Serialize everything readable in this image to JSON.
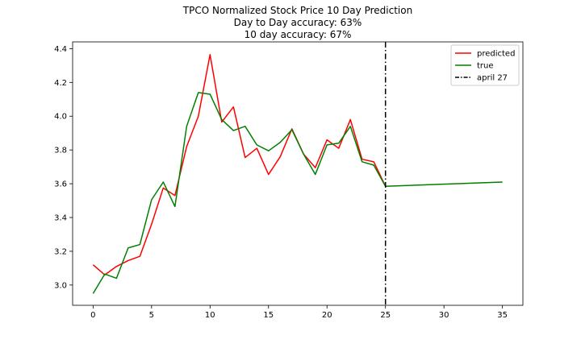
{
  "chart_data": {
    "type": "line",
    "title": [
      "TPCO Normalized Stock Price 10 Day Prediction",
      "Day to Day accuracy: 63%",
      "10 day accuracy: 67%"
    ],
    "xlabel": "",
    "ylabel": "",
    "xlim": [
      -1.75,
      36.75
    ],
    "ylim": [
      2.88,
      4.44
    ],
    "xticks": [
      0,
      5,
      10,
      15,
      20,
      25,
      30,
      35
    ],
    "yticks": [
      3.0,
      3.2,
      3.4,
      3.6,
      3.8,
      4.0,
      4.2,
      4.4
    ],
    "grid": false,
    "legend_position": "top-right",
    "series": [
      {
        "name": "predicted",
        "color": "#ff0000",
        "x": [
          0,
          1,
          2,
          3,
          4,
          5,
          6,
          7,
          8,
          9,
          10,
          11,
          12,
          13,
          14,
          15,
          16,
          17,
          18,
          19,
          20,
          21,
          22,
          23,
          24,
          25
        ],
        "y": [
          3.12,
          3.06,
          3.11,
          3.145,
          3.17,
          3.36,
          3.575,
          3.53,
          3.82,
          4.0,
          4.365,
          3.965,
          4.055,
          3.755,
          3.81,
          3.655,
          3.76,
          3.925,
          3.775,
          3.695,
          3.86,
          3.81,
          3.98,
          3.745,
          3.73,
          3.585
        ]
      },
      {
        "name": "true",
        "color": "#008000",
        "x": [
          0,
          1,
          2,
          3,
          4,
          5,
          6,
          7,
          8,
          9,
          10,
          11,
          12,
          13,
          14,
          15,
          16,
          17,
          18,
          19,
          20,
          21,
          22,
          23,
          24,
          25,
          35
        ],
        "y": [
          2.95,
          3.065,
          3.04,
          3.22,
          3.24,
          3.505,
          3.61,
          3.465,
          3.94,
          4.14,
          4.13,
          3.98,
          3.915,
          3.94,
          3.83,
          3.795,
          3.845,
          3.92,
          3.775,
          3.655,
          3.83,
          3.84,
          3.94,
          3.73,
          3.71,
          3.585,
          3.61
        ]
      }
    ],
    "vlines": [
      {
        "name": "april 27",
        "x": 25,
        "color": "#000000",
        "style": "dashdot"
      }
    ]
  }
}
